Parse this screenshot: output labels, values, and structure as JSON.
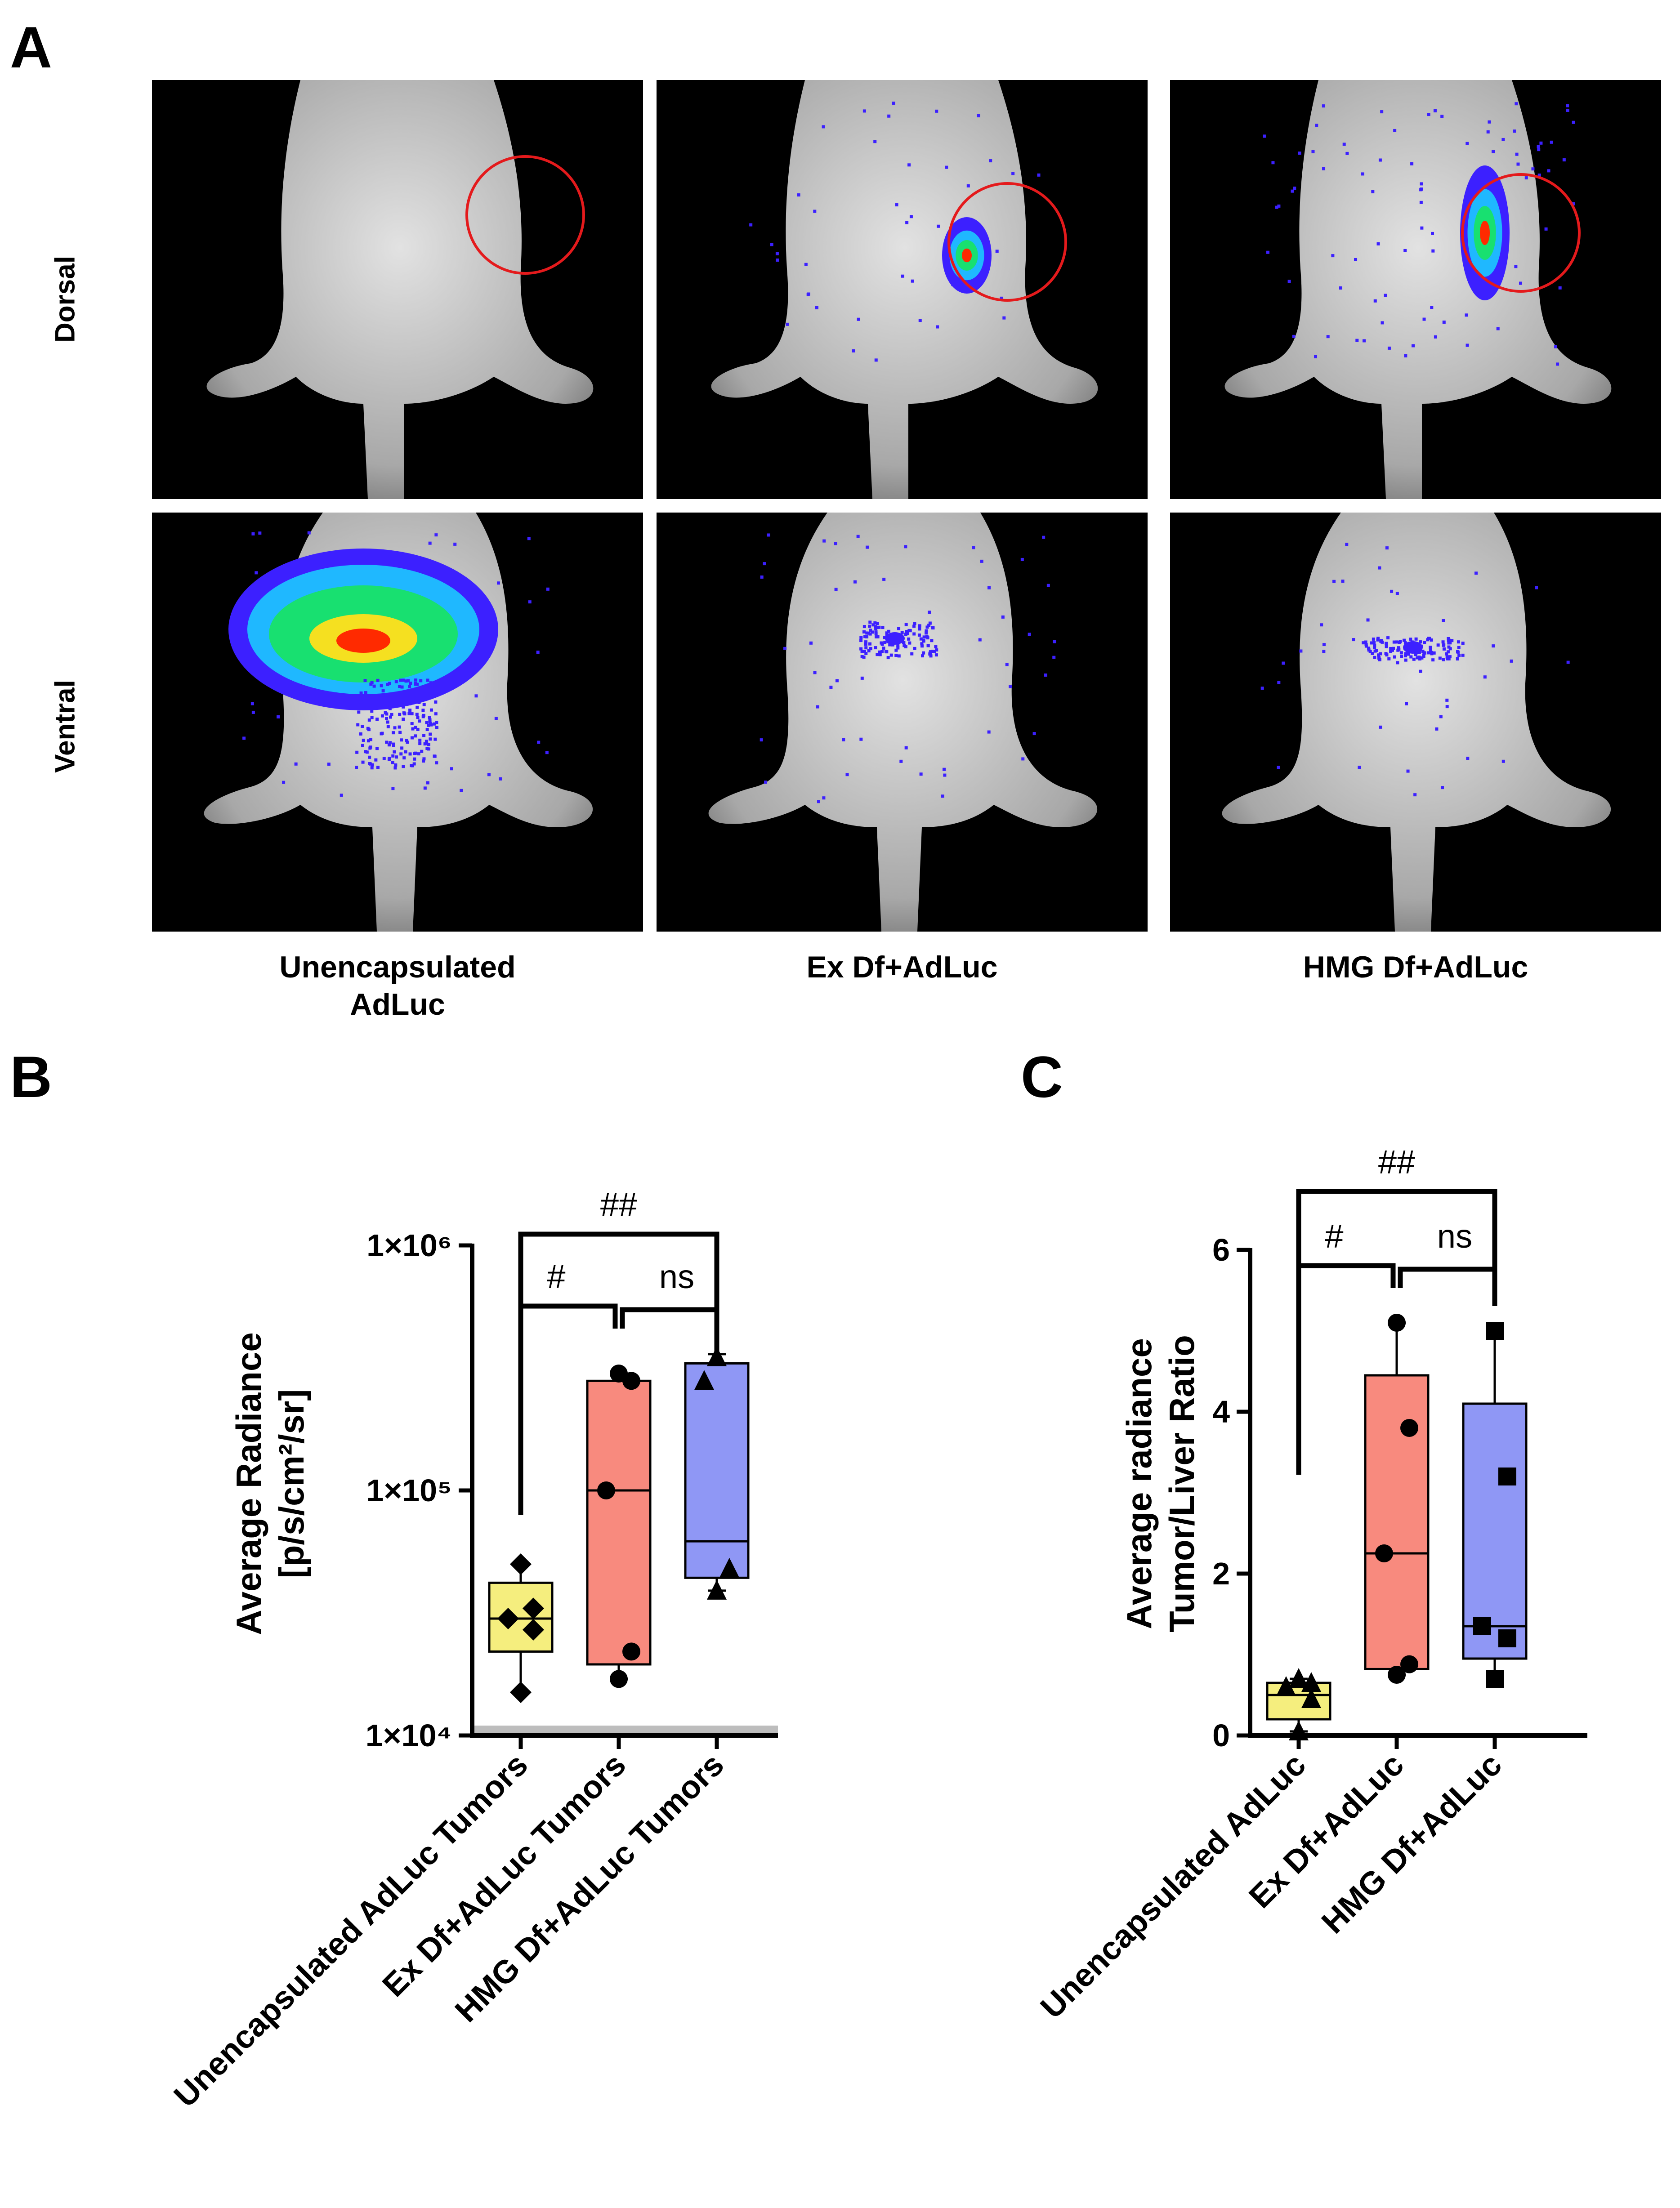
{
  "panel_a": {
    "letter": "A",
    "row_labels": [
      "Dorsal",
      "Ventral"
    ],
    "column_labels": [
      [
        "Unencapsulated",
        "AdLuc"
      ],
      [
        "Ex Df+AdLuc"
      ],
      [
        "HMG Df+AdLuc"
      ]
    ],
    "colors": {
      "tumor_circle": "#e41a1c",
      "signal_low": "#3c20ff",
      "signal_mid": "#18e070",
      "signal_high": "#ff2a00"
    }
  },
  "panel_b": {
    "letter": "B"
  },
  "panel_c": {
    "letter": "C"
  },
  "chart_data": [
    {
      "type": "box",
      "ylabel": [
        "Average Radiance",
        "[p/s/cm²/sr]"
      ],
      "yscale": "log",
      "ylim": [
        10000,
        1000000
      ],
      "yticks": [
        10000,
        100000,
        1000000
      ],
      "ytick_labels": [
        "1×10⁴",
        "1×10⁵",
        "1×10⁶"
      ],
      "categories": [
        "Unencapsulated AdLuc Tumors",
        "Ex Df+AdLuc Tumors",
        "HMG Df+AdLuc Tumors"
      ],
      "colors": [
        "#f5ee7e",
        "#f88a7e",
        "#8f97f5"
      ],
      "markers": [
        "diamond",
        "circle",
        "triangle"
      ],
      "boxes": [
        {
          "min": 15000,
          "q1": 22000,
          "median": 30000,
          "q3": 42000,
          "max": 50000
        },
        {
          "min": 17000,
          "q1": 19500,
          "median": 100000,
          "q3": 280000,
          "max": 300000
        },
        {
          "min": 39000,
          "q1": 44000,
          "median": 62000,
          "q3": 330000,
          "max": 360000
        }
      ],
      "points": [
        [
          15000,
          27000,
          30000,
          33000,
          50000
        ],
        [
          17000,
          22000,
          100000,
          280000,
          300000
        ],
        [
          39000,
          48000,
          280000,
          350000
        ]
      ],
      "significance": [
        {
          "from": 0,
          "to": 1,
          "label": "#"
        },
        {
          "from": 1,
          "to": 2,
          "label": "ns"
        },
        {
          "from": 0,
          "to": 2,
          "label": "##"
        }
      ]
    },
    {
      "type": "box",
      "ylabel": [
        "Average radiance",
        "Tumor/Liver Ratio"
      ],
      "yscale": "linear",
      "ylim": [
        0,
        6
      ],
      "yticks": [
        0,
        2,
        4,
        6
      ],
      "ytick_labels": [
        "0",
        "2",
        "4",
        "6"
      ],
      "categories": [
        "Unencapsulated AdLuc",
        "Ex Df+AdLuc",
        "HMG Df+AdLuc"
      ],
      "colors": [
        "#f5ee7e",
        "#f88a7e",
        "#8f97f5"
      ],
      "markers": [
        "triangle",
        "circle",
        "square"
      ],
      "boxes": [
        {
          "min": 0.05,
          "q1": 0.2,
          "median": 0.5,
          "q3": 0.65,
          "max": 0.7
        },
        {
          "min": 0.75,
          "q1": 0.82,
          "median": 2.25,
          "q3": 4.45,
          "max": 5.1
        },
        {
          "min": 0.7,
          "q1": 0.95,
          "median": 1.35,
          "q3": 4.1,
          "max": 5.0
        }
      ],
      "points": [
        [
          0.05,
          0.45,
          0.6,
          0.65,
          0.7
        ],
        [
          0.75,
          0.88,
          2.25,
          3.8,
          5.1
        ],
        [
          0.7,
          1.2,
          1.35,
          3.2,
          5.0
        ]
      ],
      "significance": [
        {
          "from": 0,
          "to": 1,
          "label": "#"
        },
        {
          "from": 1,
          "to": 2,
          "label": "ns"
        },
        {
          "from": 0,
          "to": 2,
          "label": "##"
        }
      ]
    }
  ]
}
